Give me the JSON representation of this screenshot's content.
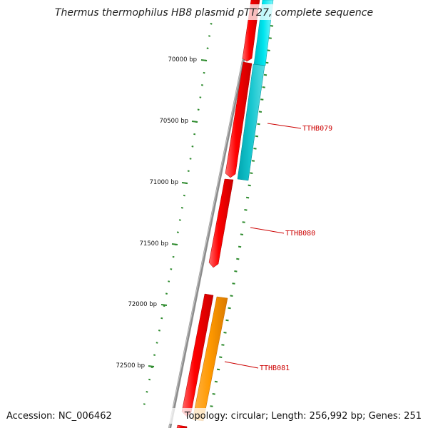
{
  "title": "Thermus thermophilus HB8 plasmid pTT27, complete sequence",
  "footer": {
    "accession": "Accession: NC_006462",
    "summary": "Topology: circular; Length: 256,992 bp; Genes: 251"
  },
  "colors": {
    "backbone": "#8c8c8c",
    "tick": "#2e8b2e",
    "forward_gene": "#ff0000",
    "reverse_gene_cyan": "#00e5ee",
    "reverse_gene_orange": "#ff9900",
    "label": "#cc0000"
  },
  "ruler": {
    "ticks": [
      {
        "label": "70000 bp"
      },
      {
        "label": "70500 bp"
      },
      {
        "label": "71000 bp"
      },
      {
        "label": "71500 bp"
      },
      {
        "label": "72000 bp"
      },
      {
        "label": "72500 bp"
      }
    ]
  },
  "gene_labels": [
    {
      "label": "TTHB079"
    },
    {
      "label": "TTHB080"
    },
    {
      "label": "TTHB081"
    }
  ]
}
